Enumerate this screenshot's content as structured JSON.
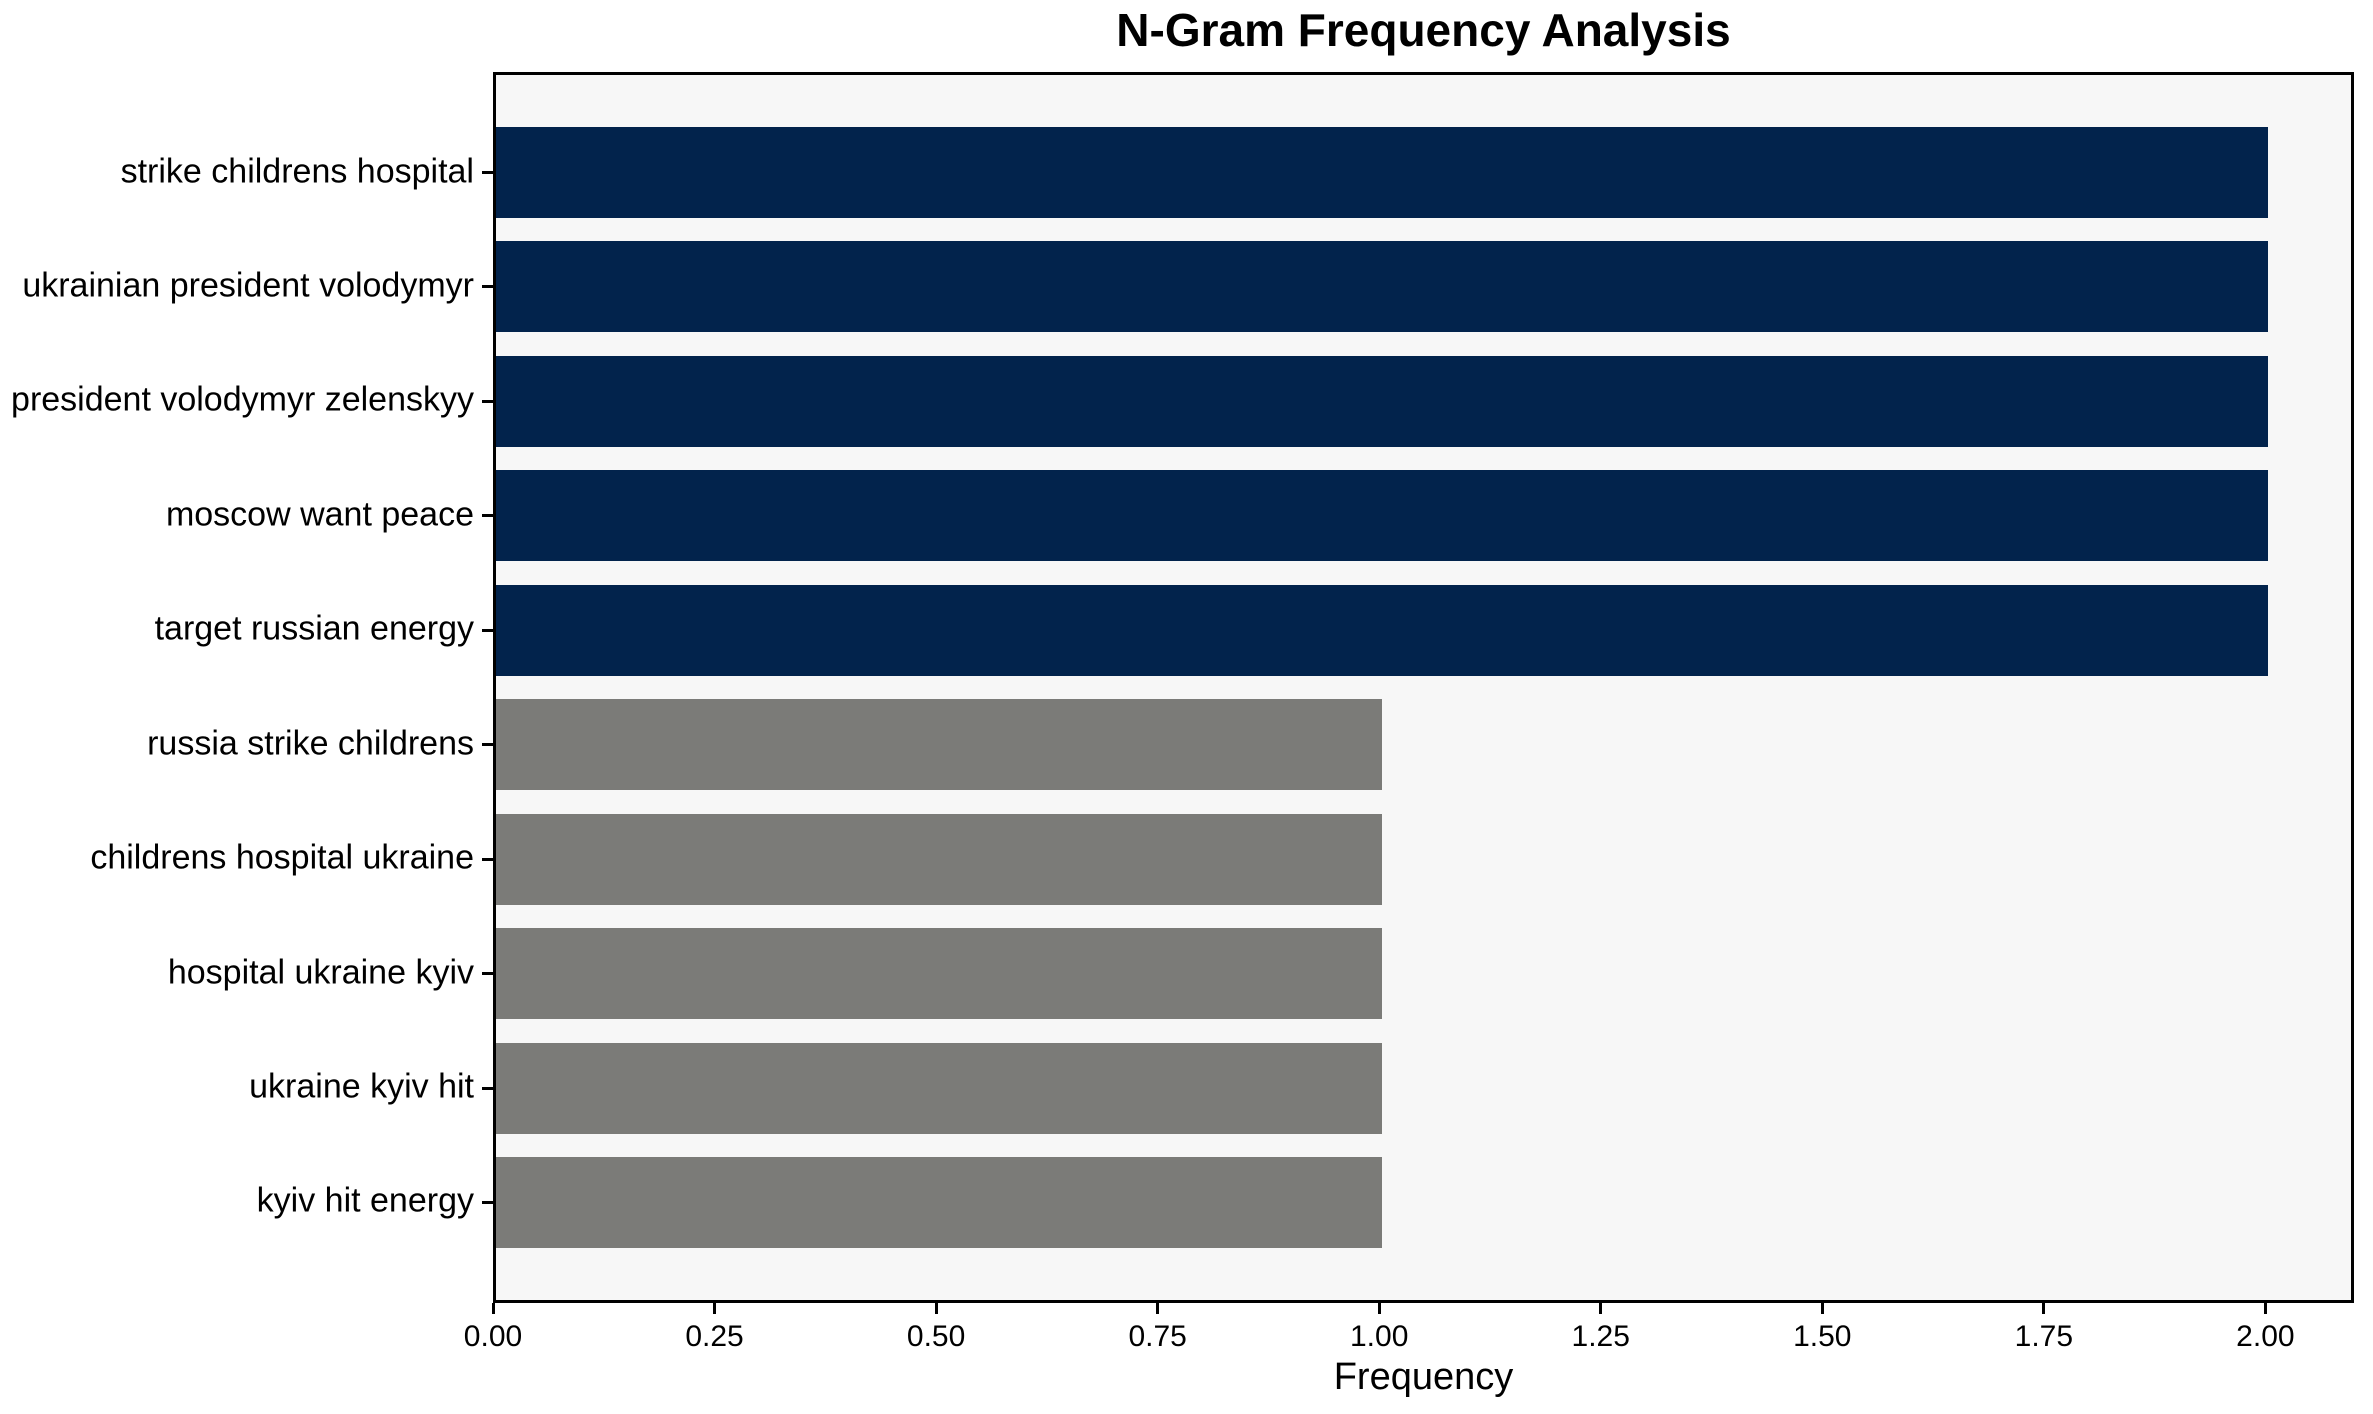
{
  "figure": {
    "background": "#ffffff",
    "plot_background": "#f7f7f7",
    "spine_color": "#000000"
  },
  "chart_data": {
    "type": "bar",
    "orientation": "horizontal",
    "title": "N-Gram Frequency Analysis",
    "xlabel": "Frequency",
    "ylabel": "",
    "categories": [
      "strike childrens hospital",
      "ukrainian president volodymyr",
      "president volodymyr zelenskyy",
      "moscow want peace",
      "target russian energy",
      "russia strike childrens",
      "childrens hospital ukraine",
      "hospital ukraine kyiv",
      "ukraine kyiv hit",
      "kyiv hit energy"
    ],
    "values": [
      2,
      2,
      2,
      2,
      2,
      1,
      1,
      1,
      1,
      1
    ],
    "bar_colors": [
      "#02234c",
      "#02234c",
      "#02234c",
      "#02234c",
      "#02234c",
      "#7b7b78",
      "#7b7b78",
      "#7b7b78",
      "#7b7b78",
      "#7b7b78"
    ],
    "xlim": [
      0,
      2.1
    ],
    "xticks": [
      0,
      0.25,
      0.5,
      0.75,
      1.0,
      1.25,
      1.5,
      1.75,
      2.0
    ],
    "xtick_labels": [
      "0.00",
      "0.25",
      "0.50",
      "0.75",
      "1.00",
      "1.25",
      "1.50",
      "1.75",
      "2.00"
    ],
    "grid": false,
    "legend": null
  }
}
